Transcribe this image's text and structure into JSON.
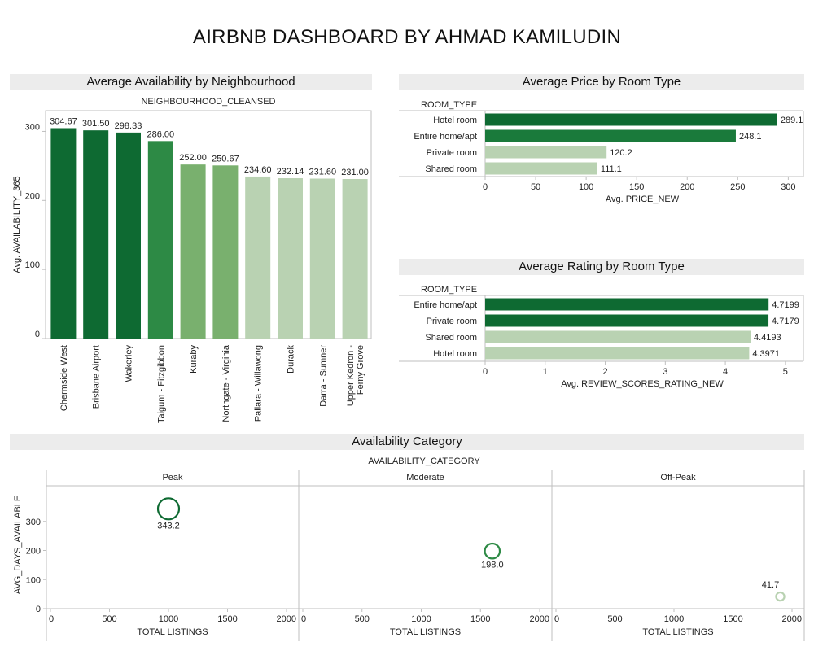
{
  "dashboard": {
    "title": "AIRBNB DASHBOARD BY AHMAD KAMILUDIN"
  },
  "colors": {
    "dark": "#0e6a32",
    "mid": "#2d8a45",
    "light_mid": "#79b06e",
    "light": "#b9d2b2",
    "panel_header_bg": "#ececec",
    "axis": "#bfbfbf"
  },
  "panels": {
    "neighbourhood": {
      "title": "Average Availability by Neighbourhood",
      "chart_data": {
        "type": "bar",
        "title": "",
        "subtitle": "NEIGHBOURHOOD_CLEANSED",
        "xlabel": "",
        "ylabel": "Avg. AVAILABILITY_365",
        "ylim": [
          0,
          330
        ],
        "yticks": [
          "0",
          "100",
          "200",
          "300"
        ],
        "categories": [
          "Chermside West",
          "Brisbane Airport",
          "Wakerley",
          "Taigum - Fitzgibbon",
          "Kuraby",
          "Northgate - Virginia",
          "Pallara - Willawong",
          "Durack",
          "Darra - Sumner",
          "Upper Kedron - Ferny Grove"
        ],
        "values": [
          304.67,
          301.5,
          298.33,
          286.0,
          252.0,
          250.67,
          234.6,
          232.14,
          231.6,
          231.0
        ],
        "labels": [
          "304.67",
          "301.50",
          "298.33",
          "286.00",
          "252.00",
          "250.67",
          "234.60",
          "232.14",
          "231.60",
          "231.00"
        ],
        "bar_colors": [
          "#0e6a32",
          "#0e6a32",
          "#0e6a32",
          "#2d8a45",
          "#79b06e",
          "#79b06e",
          "#b9d2b2",
          "#b9d2b2",
          "#b9d2b2",
          "#b9d2b2"
        ],
        "grid": false
      }
    },
    "price": {
      "title": "Average Price by Room Type",
      "chart_data": {
        "type": "bar",
        "orientation": "horizontal",
        "category_header": "ROOM_TYPE",
        "xlabel": "Avg. PRICE_NEW",
        "xlim": [
          0,
          315
        ],
        "xticks": [
          "0",
          "50",
          "100",
          "150",
          "200",
          "250",
          "300"
        ],
        "categories": [
          "Hotel room",
          "Entire home/apt",
          "Private room",
          "Shared room"
        ],
        "values": [
          289.1,
          248.1,
          120.2,
          111.1
        ],
        "labels": [
          "289.1",
          "248.1",
          "120.2",
          "111.1"
        ],
        "bar_colors": [
          "#0e6a32",
          "#1a7a3b",
          "#b9d2b2",
          "#b9d2b2"
        ],
        "grid": false
      }
    },
    "rating": {
      "title": "Average Rating by Room Type",
      "chart_data": {
        "type": "bar",
        "orientation": "horizontal",
        "category_header": "ROOM_TYPE",
        "xlabel": "Avg. REVIEW_SCORES_RATING_NEW",
        "xlim": [
          0,
          5.3
        ],
        "xticks": [
          "0",
          "1",
          "2",
          "3",
          "4",
          "5"
        ],
        "categories": [
          "Entire home/apt",
          "Private room",
          "Shared room",
          "Hotel room"
        ],
        "values": [
          4.7199,
          4.7179,
          4.4193,
          4.3971
        ],
        "labels": [
          "4.7199",
          "4.7179",
          "4.4193",
          "4.3971"
        ],
        "bar_colors": [
          "#0e6a32",
          "#0e6a32",
          "#b9d2b2",
          "#b9d2b2"
        ],
        "grid": false
      }
    },
    "availability_category": {
      "title": "Availability Category",
      "chart_data": {
        "type": "scatter",
        "facet_header": "AVAILABILITY_CATEGORY",
        "facets": [
          "Peak",
          "Moderate",
          "Off-Peak"
        ],
        "xlabel": "TOTAL LISTINGS",
        "ylabel": "AVG_DAYS_AVAILABLE",
        "xlim": [
          0,
          2050
        ],
        "ylim": [
          0,
          400
        ],
        "xticks": [
          "0",
          "500",
          "1000",
          "1500",
          "2000"
        ],
        "yticks": [
          "0",
          "100",
          "200",
          "300"
        ],
        "points": [
          {
            "facet": "Peak",
            "x": 1000,
            "y": 343.2,
            "label": "343.2",
            "color": "#0e6a32"
          },
          {
            "facet": "Moderate",
            "x": 1600,
            "y": 198.0,
            "label": "198.0",
            "color": "#2d8a45"
          },
          {
            "facet": "Off-Peak",
            "x": 1900,
            "y": 41.7,
            "label": "41.7",
            "color": "#b9d2b2"
          }
        ],
        "grid": false
      }
    }
  }
}
